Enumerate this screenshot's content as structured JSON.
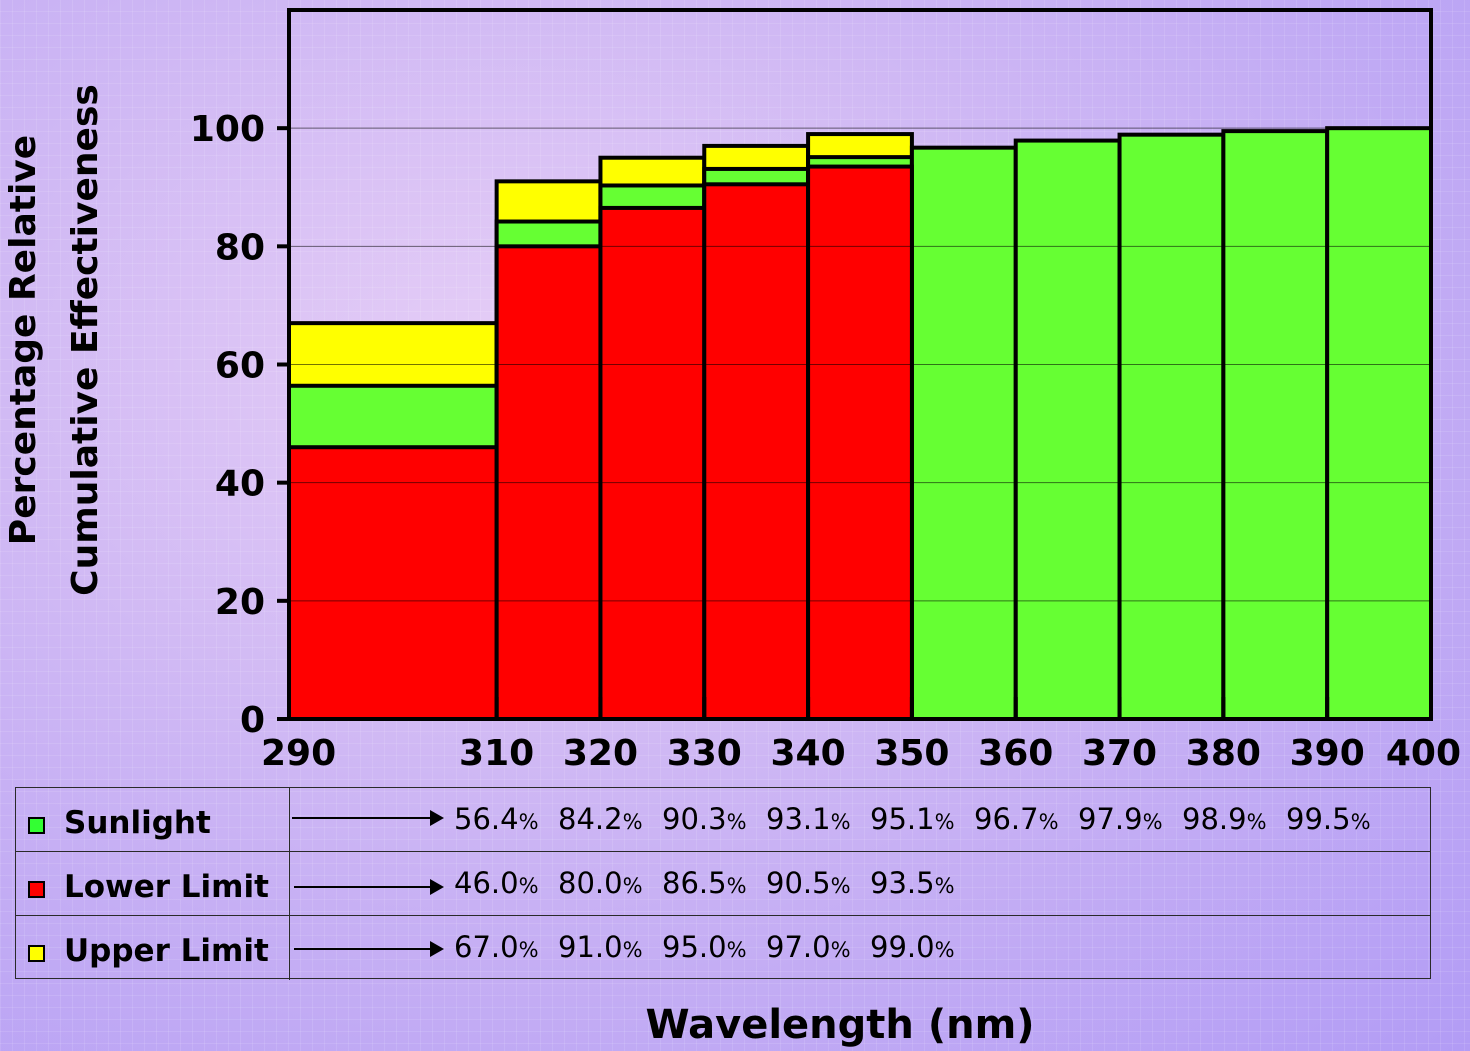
{
  "chart_data": {
    "type": "area",
    "ylabel_lines": [
      "Percentage Relative",
      "Cumulative Effectiveness"
    ],
    "xlabel": "Wavelength (nm)",
    "xlim": [
      290,
      400
    ],
    "ylim": [
      0,
      120
    ],
    "x_ticks": [
      290,
      310,
      320,
      330,
      340,
      350,
      360,
      370,
      380,
      390,
      400
    ],
    "y_ticks": [
      0,
      20,
      40,
      60,
      80,
      100
    ],
    "series": [
      {
        "name": "Sunlight",
        "color": "#66ff33",
        "x": [
          290,
          310,
          320,
          330,
          340,
          350,
          360,
          370,
          380,
          390
        ],
        "values": [
          56.4,
          84.2,
          90.3,
          93.1,
          95.1,
          96.7,
          97.9,
          98.9,
          99.5,
          100
        ]
      },
      {
        "name": "Lower Limit",
        "color": "#ff0000",
        "x": [
          290,
          310,
          320,
          330,
          340
        ],
        "values": [
          46.0,
          80.0,
          86.5,
          90.5,
          93.5
        ]
      },
      {
        "name": "Upper Limit",
        "color": "#ffff00",
        "x": [
          290,
          310,
          320,
          330,
          340
        ],
        "values": [
          67.0,
          91.0,
          95.0,
          97.0,
          99.0
        ]
      }
    ]
  },
  "table": {
    "percent_sign": "%",
    "rows": [
      {
        "label": "Sunlight",
        "color": "#33ff33",
        "values": [
          "56.4",
          "84.2",
          "90.3",
          "93.1",
          "95.1",
          "96.7",
          "97.9",
          "98.9",
          "99.5"
        ]
      },
      {
        "label": "Lower Limit",
        "color": "#ff0000",
        "values": [
          "46.0",
          "80.0",
          "86.5",
          "90.5",
          "93.5"
        ]
      },
      {
        "label": "Upper Limit",
        "color": "#ffff00",
        "values": [
          "67.0",
          "91.0",
          "95.0",
          "97.0",
          "99.0"
        ]
      }
    ]
  }
}
